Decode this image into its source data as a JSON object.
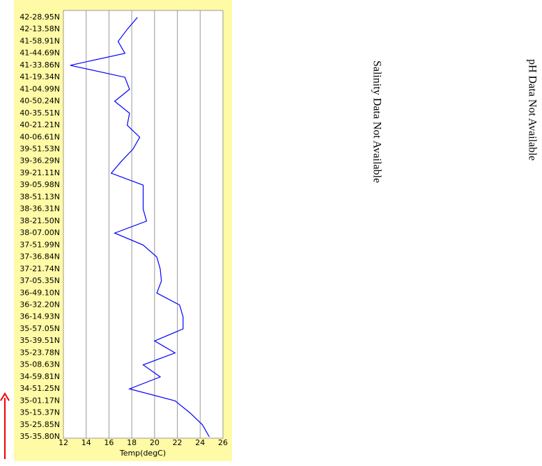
{
  "chart_data": {
    "type": "line",
    "orientation": "horizontal",
    "categories": [
      "42-28.95N",
      "42-13.58N",
      "41-58.91N",
      "41-44.69N",
      "41-33.86N",
      "41-19.34N",
      "41-04.99N",
      "40-50.24N",
      "40-35.51N",
      "40-21.21N",
      "40-06.61N",
      "39-51.53N",
      "39-36.29N",
      "39-21.11N",
      "39-05.98N",
      "38-51.13N",
      "38-36.31N",
      "38-21.50N",
      "38-07.00N",
      "37-51.99N",
      "37-36.84N",
      "37-21.74N",
      "37-05.35N",
      "36-49.10N",
      "36-32.20N",
      "36-14.93N",
      "35-57.05N",
      "35-39.51N",
      "35-23.78N",
      "35-08.63N",
      "34-59.81N",
      "34-51.25N",
      "35-01.17N",
      "35-15.37N",
      "35-25.85N",
      "35-35.80N"
    ],
    "series": [
      {
        "color": "#0000ff",
        "values": [
          18.5,
          17.6,
          16.8,
          17.4,
          12.6,
          17.4,
          17.8,
          16.5,
          17.8,
          17.6,
          18.7,
          18.1,
          17.1,
          16.2,
          19.0,
          19.0,
          19.0,
          19.3,
          16.5,
          19.0,
          20.2,
          20.5,
          20.6,
          20.2,
          22.2,
          22.5,
          22.5,
          20.0,
          21.8,
          19.0,
          20.5,
          17.8,
          21.8,
          23.1,
          24.2,
          24.8
        ]
      }
    ],
    "xlabel": "Temp(degC)",
    "xlim": [
      12,
      26
    ],
    "xticks": [
      12,
      14,
      16,
      18,
      20,
      22,
      24,
      26
    ],
    "grid": true,
    "annotations": [
      "Salinity Data Not Available",
      "pH Data Not Available"
    ]
  }
}
